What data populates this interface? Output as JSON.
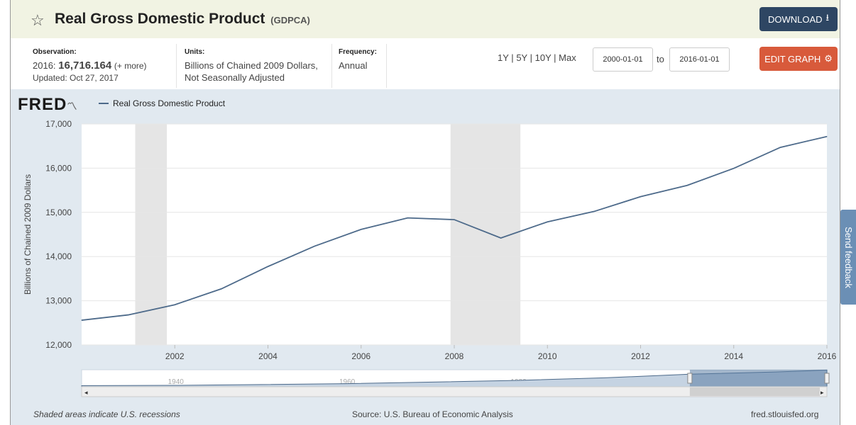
{
  "header": {
    "title": "Real Gross Domestic Product",
    "series_code": "(GDPCA)",
    "download_label": "DOWNLOAD"
  },
  "meta": {
    "observation_label": "Observation:",
    "observation_year": "2016:",
    "observation_value": "16,716.164",
    "observation_more": "(+ more)",
    "updated": "Updated: Oct 27, 2017",
    "units_label": "Units:",
    "units_line1": "Billions of Chained 2009 Dollars,",
    "units_line2": "Not Seasonally Adjusted",
    "frequency_label": "Frequency:",
    "frequency_value": "Annual"
  },
  "range": {
    "r1y": "1Y",
    "r5y": "5Y",
    "r10y": "10Y",
    "rmax": "Max",
    "sep": "|",
    "start_date": "2000-01-01",
    "to_label": "to",
    "end_date": "2016-01-01",
    "edit_label": "EDIT GRAPH"
  },
  "brand": "FRED",
  "feedback_label": "Send feedback",
  "footer": {
    "recession_note": "Shaded areas indicate U.S. recessions",
    "source": "Source: U.S. Bureau of Economic Analysis",
    "site": "fred.stlouisfed.org"
  },
  "colors": {
    "line": "#4d6a8a",
    "recession": "#e5e5e5",
    "download": "#2e4663",
    "edit": "#d85a3b"
  },
  "chart_data": {
    "type": "line",
    "title": "Real Gross Domestic Product",
    "legend": "Real Gross Domestic Product",
    "ylabel": "Billions of Chained 2009 Dollars",
    "xlabel": "",
    "xlim": [
      2000,
      2016
    ],
    "ylim": [
      12000,
      17000
    ],
    "y_ticks": [
      12000,
      13000,
      14000,
      15000,
      16000,
      17000
    ],
    "y_tick_labels": [
      "12,000",
      "13,000",
      "14,000",
      "15,000",
      "16,000",
      "17,000"
    ],
    "x_ticks": [
      2002,
      2004,
      2006,
      2008,
      2010,
      2012,
      2014,
      2016
    ],
    "x_tick_labels": [
      "2002",
      "2004",
      "2006",
      "2008",
      "2010",
      "2012",
      "2014",
      "2016"
    ],
    "x": [
      2000,
      2001,
      2002,
      2003,
      2004,
      2005,
      2006,
      2007,
      2008,
      2009,
      2010,
      2011,
      2012,
      2013,
      2014,
      2015,
      2016
    ],
    "values": [
      12560,
      12680,
      12910,
      13270,
      13775,
      14235,
      14615,
      14875,
      14835,
      14420,
      14785,
      15020,
      15355,
      15610,
      15995,
      16470,
      16716
    ],
    "recessions": [
      [
        2001.15,
        2001.83
      ],
      [
        2007.92,
        2009.42
      ]
    ],
    "navigator": {
      "tick_labels": [
        "1940",
        "1960",
        "1980",
        "2000"
      ],
      "tick_years": [
        1940,
        1960,
        1980,
        2000
      ],
      "xlim": [
        1929,
        2016
      ],
      "selected": [
        2000,
        2016
      ],
      "series_x": [
        1929,
        1940,
        1950,
        1960,
        1970,
        1980,
        1990,
        2000,
        2010,
        2016
      ],
      "series_y": [
        1100,
        1400,
        2200,
        3100,
        4700,
        6400,
        8900,
        12560,
        14785,
        16716
      ]
    }
  }
}
